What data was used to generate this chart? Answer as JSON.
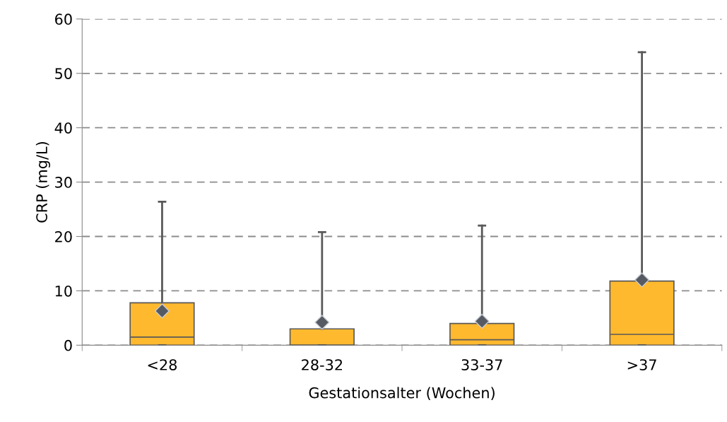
{
  "chart_data": {
    "type": "box",
    "xlabel": "Gestationsalter (Wochen)",
    "ylabel": "CRP (mg/L)",
    "categories": [
      "<28",
      "28-32",
      "33-37",
      ">37"
    ],
    "color": "#ffb92e",
    "boxes": [
      {
        "low": 0,
        "q1": 0,
        "median": 1.5,
        "q3": 7.8,
        "high": 26.4,
        "mean": 6.3
      },
      {
        "low": 0,
        "q1": 0,
        "median": 0,
        "q3": 3.0,
        "high": 20.8,
        "mean": 4.2
      },
      {
        "low": 0,
        "q1": 0,
        "median": 1.0,
        "q3": 4.0,
        "high": 22.0,
        "mean": 4.4
      },
      {
        "low": 0,
        "q1": 0,
        "median": 2.0,
        "q3": 11.8,
        "high": 53.9,
        "mean": 12.0
      }
    ],
    "ylim": [
      0,
      60
    ],
    "yticks": [
      0,
      10,
      20,
      30,
      40,
      50,
      60
    ],
    "grid": "y"
  }
}
